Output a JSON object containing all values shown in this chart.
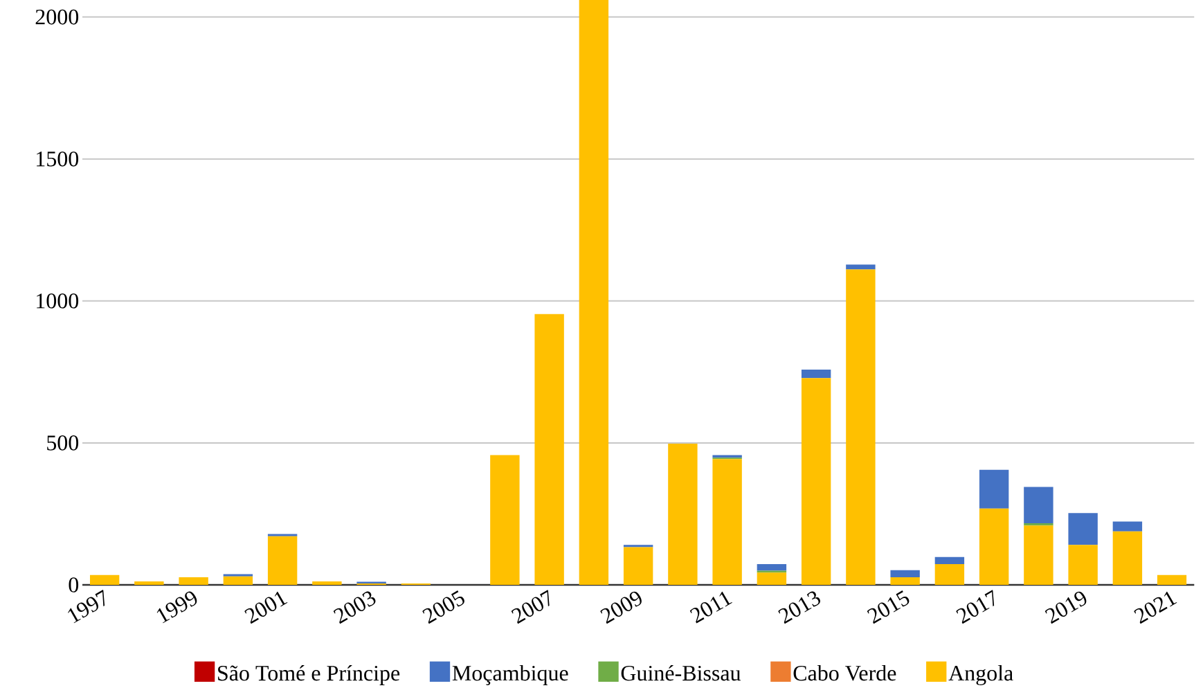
{
  "chart_data": {
    "type": "bar",
    "stacked": true,
    "categories": [
      "1997",
      null,
      "1999",
      null,
      "2001",
      null,
      "2003",
      null,
      "2005",
      null,
      "2007",
      null,
      "2009",
      null,
      "2011",
      null,
      "2013",
      null,
      "2015",
      null,
      "2017",
      null,
      "2019",
      null,
      "2021"
    ],
    "series": [
      {
        "name": "Angola",
        "color": "#ffc000",
        "values": [
          35,
          12,
          27,
          30,
          171,
          12,
          5,
          5,
          0,
          457,
          954,
          2060,
          133,
          497,
          443,
          43,
          728,
          1111,
          27,
          73,
          269,
          209,
          141,
          188,
          35
        ]
      },
      {
        "name": "Cabo Verde",
        "color": "#ed7d31",
        "values": [
          0,
          0,
          0,
          0,
          0,
          0,
          0,
          0,
          0,
          0,
          0,
          0,
          0,
          0,
          0,
          0,
          0,
          0,
          0,
          0,
          0,
          0,
          0,
          0,
          0
        ]
      },
      {
        "name": "Guiné-Bissau",
        "color": "#70ad47",
        "values": [
          0,
          0,
          0,
          0,
          0,
          0,
          0,
          0,
          0,
          0,
          0,
          0,
          0,
          0,
          5,
          7,
          0,
          0,
          0,
          0,
          0,
          8,
          0,
          0,
          0
        ]
      },
      {
        "name": "Moçambique",
        "color": "#4472c4",
        "values": [
          0,
          0,
          0,
          8,
          8,
          0,
          6,
          0,
          0,
          0,
          0,
          0,
          8,
          0,
          9,
          23,
          30,
          17,
          25,
          25,
          136,
          128,
          112,
          35,
          0
        ]
      },
      {
        "name": "São Tomé e Príncipe",
        "color": "#c00000",
        "values": [
          0,
          0,
          0,
          0,
          0,
          0,
          0,
          0,
          0,
          0,
          0,
          0,
          0,
          0,
          0,
          0,
          0,
          0,
          0,
          0,
          0,
          0,
          0,
          0,
          0
        ]
      }
    ],
    "ylim": [
      0,
      2060
    ],
    "yticks": [
      0,
      500,
      1000,
      1500,
      2000
    ],
    "grid": "y",
    "legend": "bottom"
  }
}
